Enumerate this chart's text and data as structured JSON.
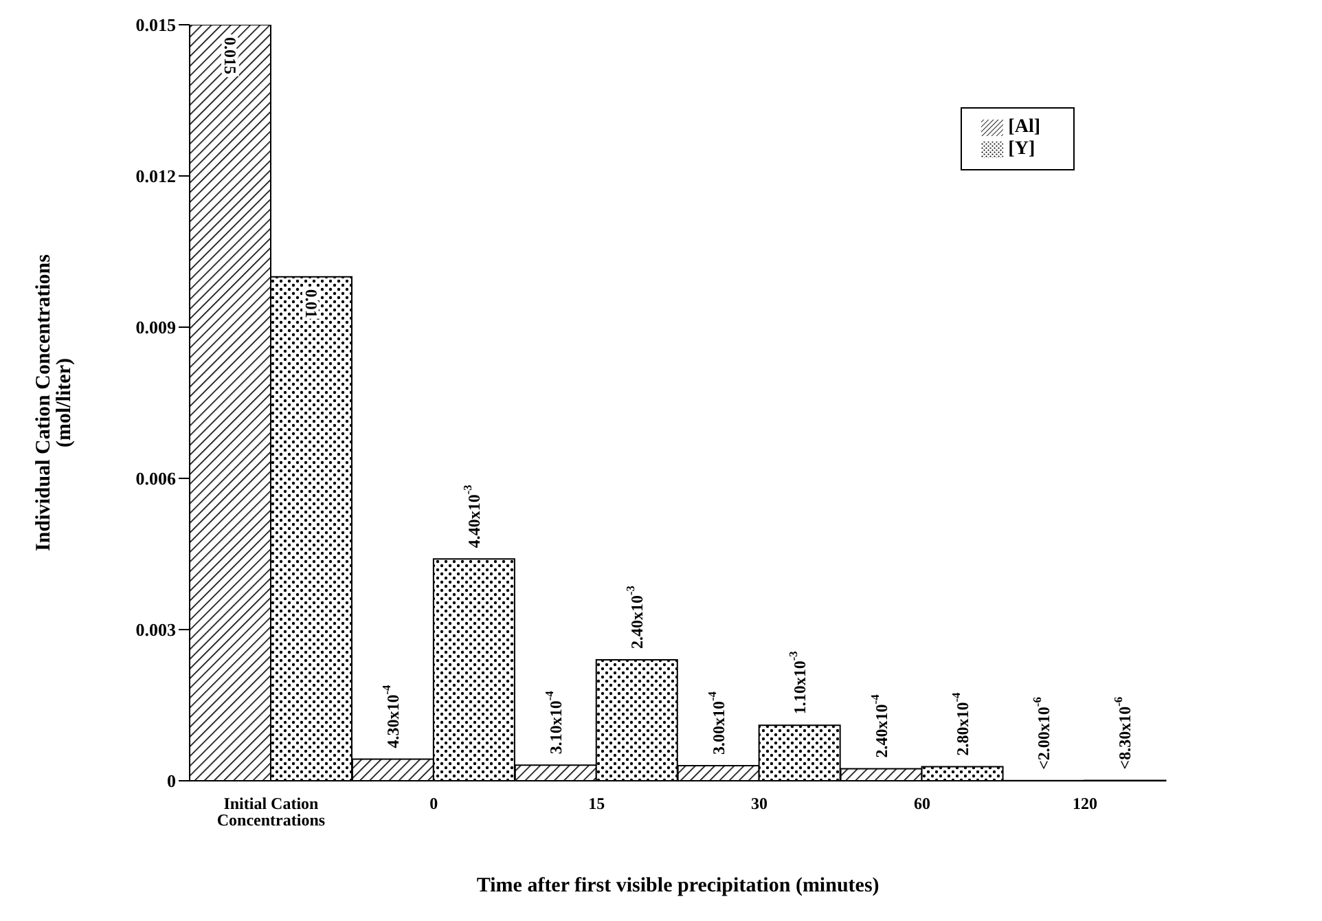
{
  "chart_data": {
    "type": "bar",
    "xlabel": "Time after first visible precipitation (minutes)",
    "ylabel": "Individual Cation Concentrations (mol/liter)",
    "categories": [
      "Initial Cation Concentrations",
      "0",
      "15",
      "30",
      "60",
      "120"
    ],
    "series": [
      {
        "name": "[Al]",
        "color": "#000000",
        "values": [
          0.015,
          0.00043,
          0.00031,
          0.0003,
          0.00024,
          2e-06
        ],
        "value_labels": [
          "0.015",
          "4.30x10$^{-4}$",
          "3.10x10$^{-4}$",
          "3.00x10$^{-4}$",
          "2.40x10$^{-4}$",
          "<2.00x10$^{-6}$"
        ]
      },
      {
        "name": "[Y]",
        "color": "#000000",
        "values": [
          0.01,
          0.0044,
          0.0024,
          0.0011,
          0.00028,
          8.3e-06
        ],
        "value_labels": [
          "0.01",
          "4.40x10$^{-3}$",
          "2.40x10$^{-3}$",
          "1.10x10$^{-3}$",
          "2.80x10$^{-4}$",
          "<8.30x10$^{-6}$"
        ]
      }
    ],
    "ylim": [
      0,
      0.015
    ],
    "yticks": [
      0,
      0.003,
      0.006,
      0.009,
      0.012,
      0.015
    ],
    "grid": false,
    "legend": "top right"
  }
}
